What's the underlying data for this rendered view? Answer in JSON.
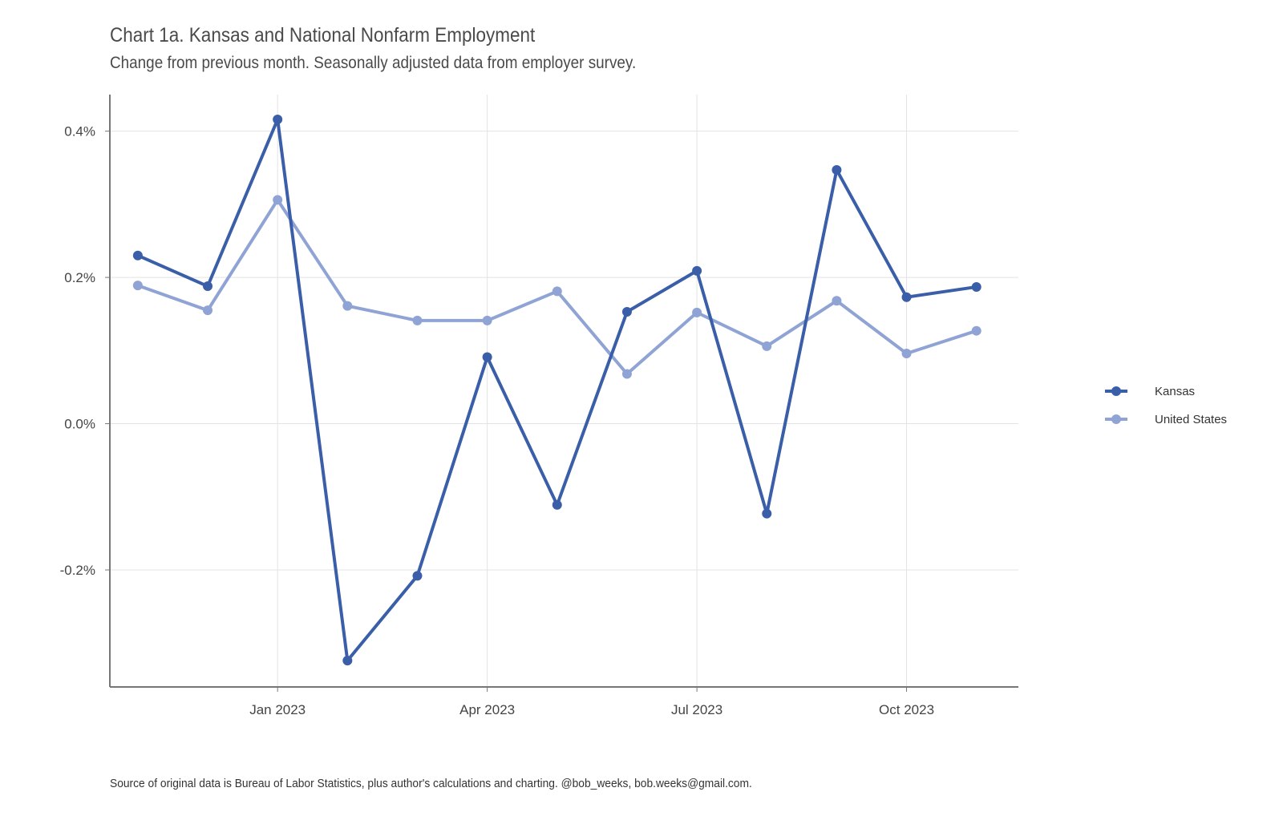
{
  "chart_data": {
    "type": "line",
    "title": "Chart 1a. Kansas and National Nonfarm Employment",
    "subtitle": "Change from previous month. Seasonally adjusted data from employer survey.",
    "caption": "Source of original data is Bureau of Labor Statistics, plus author's calculations and charting. @bob_weeks, bob.weeks@gmail.com.",
    "xlabel": "",
    "ylabel": "",
    "x": [
      "2022-11",
      "2022-12",
      "2023-01",
      "2023-02",
      "2023-03",
      "2023-04",
      "2023-05",
      "2023-06",
      "2023-07",
      "2023-08",
      "2023-09",
      "2023-10",
      "2023-11"
    ],
    "x_ticks": [
      {
        "label": "Jan 2023",
        "value": "2023-01"
      },
      {
        "label": "Apr 2023",
        "value": "2023-04"
      },
      {
        "label": "Jul 2023",
        "value": "2023-07"
      },
      {
        "label": "Oct 2023",
        "value": "2023-10"
      }
    ],
    "y_ticks": [
      {
        "label": "0.4%",
        "value": 0.4
      },
      {
        "label": "0.2%",
        "value": 0.2
      },
      {
        "label": "0.0%",
        "value": 0.0
      },
      {
        "label": "-0.2%",
        "value": -0.2
      }
    ],
    "ylim": [
      -0.36,
      0.45
    ],
    "grid": true,
    "legend_position": "right",
    "series": [
      {
        "name": "Kansas",
        "color": "#3a5fa8",
        "values": [
          0.23,
          0.188,
          0.416,
          -0.324,
          -0.208,
          0.091,
          -0.111,
          0.153,
          0.209,
          -0.123,
          0.347,
          0.173,
          0.187
        ]
      },
      {
        "name": "United States",
        "color": "#8fa3d4",
        "values": [
          0.189,
          0.155,
          0.306,
          0.161,
          0.141,
          0.141,
          0.181,
          0.068,
          0.152,
          0.106,
          0.168,
          0.096,
          0.127
        ]
      }
    ]
  }
}
